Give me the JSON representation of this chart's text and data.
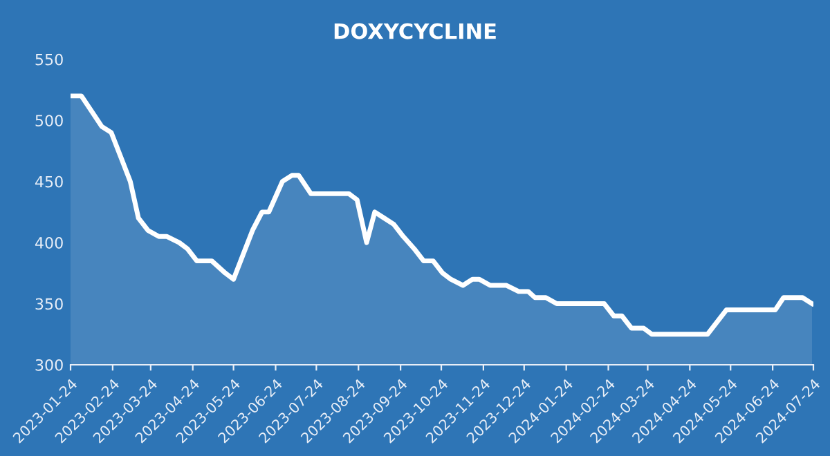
{
  "chart_data": {
    "type": "area",
    "title": "DOXYCYCLINE",
    "x": [
      "2023-01-24",
      "2023-02-01",
      "2023-02-10",
      "2023-02-16",
      "2023-02-23",
      "2023-03-02",
      "2023-03-09",
      "2023-03-15",
      "2023-03-22",
      "2023-03-30",
      "2023-04-05",
      "2023-04-14",
      "2023-04-20",
      "2023-04-27",
      "2023-05-08",
      "2023-05-18",
      "2023-05-24",
      "2023-05-31",
      "2023-06-07",
      "2023-06-14",
      "2023-06-19",
      "2023-06-29",
      "2023-07-06",
      "2023-07-11",
      "2023-07-20",
      "2023-08-17",
      "2023-08-23",
      "2023-08-30",
      "2023-09-05",
      "2023-09-12",
      "2023-09-19",
      "2023-09-26",
      "2023-10-04",
      "2023-10-11",
      "2023-10-18",
      "2023-10-25",
      "2023-10-31",
      "2023-11-09",
      "2023-11-16",
      "2023-11-21",
      "2023-11-29",
      "2023-12-11",
      "2023-12-20",
      "2023-12-27",
      "2024-01-01",
      "2024-01-09",
      "2024-01-17",
      "2024-02-21",
      "2024-02-28",
      "2024-03-05",
      "2024-03-12",
      "2024-03-21",
      "2024-03-27",
      "2024-05-07",
      "2024-05-21",
      "2024-06-26",
      "2024-07-02",
      "2024-07-16",
      "2024-07-23"
    ],
    "series": [
      {
        "color": "#ffffff",
        "values": [
          520,
          520,
          505,
          495,
          490,
          470,
          450,
          420,
          410,
          405,
          405,
          400,
          395,
          385,
          385,
          375,
          370,
          390,
          410,
          425,
          425,
          450,
          455,
          455,
          440,
          440,
          435,
          400,
          425,
          420,
          415,
          405,
          395,
          385,
          385,
          375,
          370,
          365,
          370,
          370,
          365,
          365,
          360,
          360,
          355,
          355,
          350,
          350,
          340,
          340,
          330,
          330,
          325,
          325,
          345,
          345,
          355,
          355,
          350
        ]
      }
    ],
    "xlim": [
      "2023-01-24",
      "2024-07-24"
    ],
    "xticks": [
      "2023-01-24",
      "2023-02-24",
      "2023-03-24",
      "2023-04-24",
      "2023-05-24",
      "2023-06-24",
      "2023-07-24",
      "2023-08-24",
      "2023-09-24",
      "2023-10-24",
      "2023-11-24",
      "2023-12-24",
      "2024-01-24",
      "2024-02-24",
      "2024-03-24",
      "2024-04-24",
      "2024-05-24",
      "2024-06-24",
      "2024-07-24"
    ],
    "ylim": [
      300,
      550
    ],
    "yticks": [
      300,
      350,
      400,
      450,
      500,
      550
    ],
    "grid": false,
    "marker": "none",
    "line_style": "solid"
  }
}
